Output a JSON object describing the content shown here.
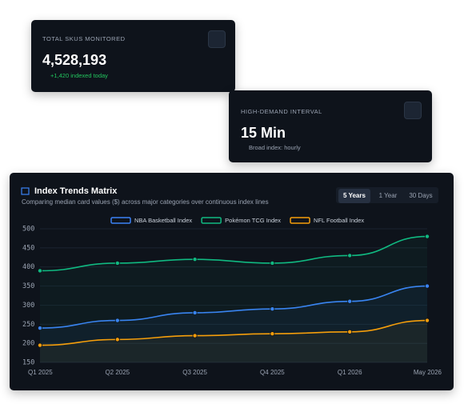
{
  "cards": [
    {
      "label": "TOTAL SKUS MONITORED",
      "value": "4,528,193",
      "note": "+1,420 indexed today"
    },
    {
      "label": "HIGH-DEMAND INTERVAL",
      "value": "15 Min",
      "note": "Broad index: hourly"
    }
  ],
  "chart_data": {
    "type": "line",
    "title": "Index Trends Matrix",
    "subtitle": "Comparing median card values ($) across major categories over continuous index lines",
    "range_options": [
      "5 Years",
      "1 Year",
      "30 Days"
    ],
    "categories": [
      "Q1 2025",
      "Q2 2025",
      "Q3 2025",
      "Q4 2025",
      "Q1 2026",
      "May 2026"
    ],
    "series": [
      {
        "name": "NBA Basketball Index",
        "color": "#3b82f6",
        "values": [
          240,
          260,
          280,
          290,
          310,
          350
        ]
      },
      {
        "name": "Pokémon TCG Index",
        "color": "#10b981",
        "values": [
          390,
          410,
          420,
          410,
          430,
          480
        ]
      },
      {
        "name": "NFL Football Index",
        "color": "#f59e0b",
        "values": [
          195,
          210,
          220,
          225,
          230,
          260
        ]
      }
    ],
    "ylim": [
      150,
      500
    ],
    "yticks": [
      150,
      200,
      250,
      300,
      350,
      400,
      450,
      500
    ],
    "grid": true,
    "legend": "top"
  }
}
